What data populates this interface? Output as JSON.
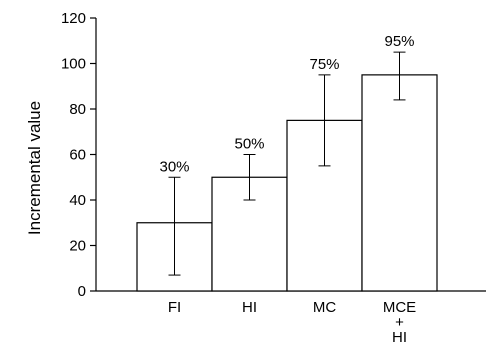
{
  "chart_data": {
    "type": "bar",
    "title": "",
    "xlabel": "",
    "ylabel": "Incremental value",
    "ylim": [
      0,
      120
    ],
    "yticks": [
      0,
      20,
      40,
      60,
      80,
      100,
      120
    ],
    "grid": false,
    "categories": [
      "FI",
      "HI",
      "MC",
      "MCE\n+\nHI"
    ],
    "values": [
      30,
      50,
      75,
      95
    ],
    "error_low": [
      7,
      40,
      55,
      84
    ],
    "error_high": [
      50,
      60,
      95,
      105
    ],
    "data_labels": [
      "30%",
      "50%",
      "75%",
      "95%"
    ],
    "bar_fill": "#ffffff",
    "bar_stroke": "#000000"
  }
}
